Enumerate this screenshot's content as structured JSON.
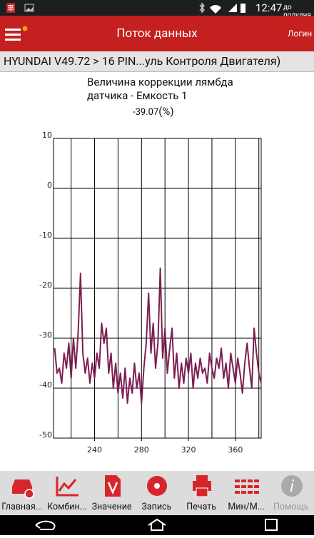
{
  "status_bar": {
    "time": "12:47",
    "ampm": "до полудня"
  },
  "app_bar": {
    "title": "Поток данных",
    "login": "Логин"
  },
  "breadcrumb": "HYUNDAI V49.72 > 16 PIN...уль Контроля Двигателя)",
  "chart_data": {
    "type": "line",
    "title": "Величина коррекции лямбда датчика - Емкость 1",
    "current_value": -39.07,
    "unit": "(%)",
    "color": "#7d1f52",
    "xlim": [
      205,
      382
    ],
    "ylim": [
      -50,
      10
    ],
    "xticks": [
      240,
      280,
      320,
      360
    ],
    "x_grid": [
      220,
      240,
      260,
      280,
      300,
      320,
      340,
      360,
      380
    ],
    "yticks": [
      10,
      0,
      -10,
      -20,
      -30,
      -40,
      -50
    ],
    "grid": true,
    "series": [
      {
        "name": "Величина коррекции лямбда датчика - Емкость 1",
        "color": "#7d1f52",
        "x": [
          206,
          208,
          210,
          212,
          214,
          216,
          218,
          220,
          222,
          224,
          226,
          228,
          230,
          232,
          234,
          236,
          238,
          240,
          242,
          244,
          246,
          248,
          250,
          252,
          254,
          256,
          258,
          260,
          262,
          264,
          266,
          268,
          270,
          272,
          274,
          276,
          278,
          280,
          282,
          284,
          286,
          288,
          290,
          292,
          294,
          296,
          298,
          300,
          302,
          304,
          306,
          308,
          310,
          312,
          314,
          316,
          318,
          320,
          322,
          324,
          326,
          328,
          330,
          332,
          334,
          336,
          338,
          340,
          342,
          344,
          346,
          348,
          350,
          352,
          354,
          356,
          358,
          360,
          362,
          364,
          366,
          368,
          370,
          372,
          374,
          376,
          378,
          380,
          382
        ],
        "values": [
          -32,
          -37,
          -36,
          -39,
          -33,
          -36,
          -31,
          -38,
          -30,
          -36,
          -29,
          -17,
          -33,
          -37,
          -34,
          -39,
          -35,
          -38,
          -33,
          -36,
          -27,
          -31,
          -28,
          -37,
          -33,
          -40,
          -35,
          -41,
          -37,
          -42,
          -36,
          -43,
          -38,
          -41,
          -35,
          -40,
          -37,
          -43,
          -36,
          -31,
          -21,
          -33,
          -27,
          -36,
          -31,
          -16,
          -34,
          -28,
          -37,
          -32,
          -28,
          -38,
          -33,
          -40,
          -35,
          -39,
          -34,
          -37,
          -33,
          -40,
          -35,
          -38,
          -34,
          -37,
          -36,
          -39,
          -33,
          -36,
          -38,
          -34,
          -36,
          -32,
          -38,
          -35,
          -40,
          -33,
          -36,
          -39,
          -34,
          -37,
          -41,
          -35,
          -31,
          -36,
          -40,
          -28,
          -33,
          -37,
          -39
        ]
      }
    ]
  },
  "bottom_nav": [
    "Главная...",
    "Комбин...",
    "Значение",
    "Запись",
    "Печать",
    "Мин/М...",
    "Помощь"
  ]
}
